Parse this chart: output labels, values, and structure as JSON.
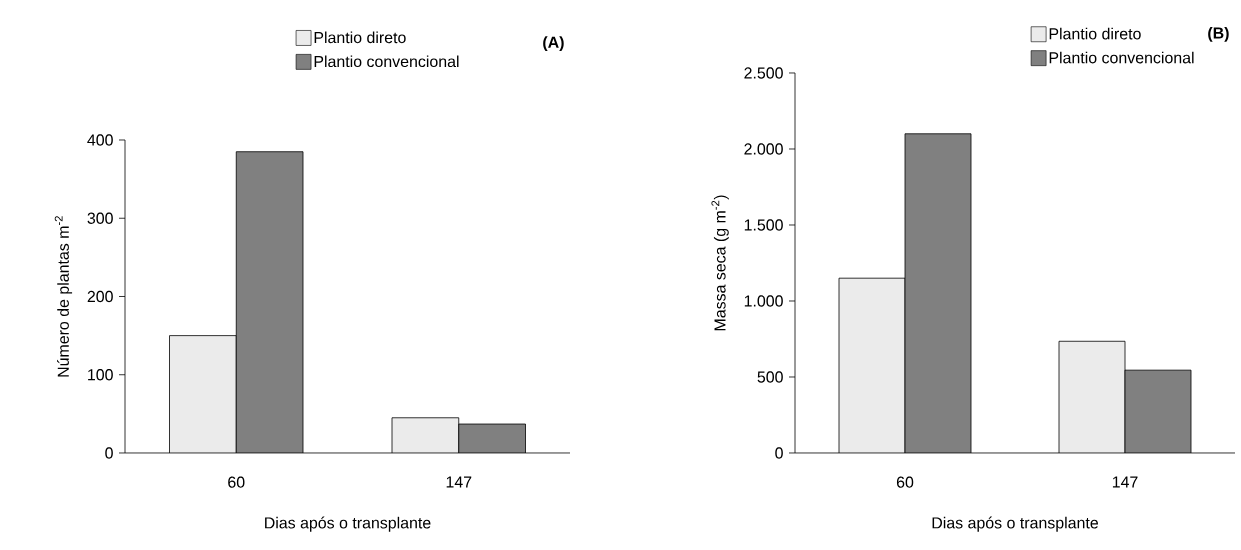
{
  "chart_data": [
    {
      "type": "bar",
      "title": "**(A)**",
      "xlabel": "Dias após o transplante",
      "ylabel": "Número de plantas m$^{-2}$",
      "categories": [
        "60",
        "147"
      ],
      "series": [
        {
          "name": "Plantio direto",
          "color": "#ebebeb",
          "values": [
            150,
            45
          ]
        },
        {
          "name": "Plantio convencional",
          "color": "#808080",
          "values": [
            385,
            37
          ]
        }
      ],
      "ylim": [
        0,
        400
      ],
      "yticks": [
        0,
        100,
        200,
        300,
        400
      ],
      "legend": "top"
    },
    {
      "type": "bar",
      "title": "**(B)**",
      "xlabel": "Dias após o transplante",
      "ylabel": "Massa seca (g m$^{-2}$)",
      "categories": [
        "60",
        "147"
      ],
      "series": [
        {
          "name": "Plantio direto",
          "color": "#ebebeb",
          "values": [
            1150,
            735
          ]
        },
        {
          "name": "Plantio convencional",
          "color": "#808080",
          "values": [
            2100,
            545
          ]
        }
      ],
      "ylim": [
        0,
        2500
      ],
      "yticks": [
        0,
        {
          "value": 500,
          "label": "500"
        },
        {
          "value": 1000,
          "label": "1.000"
        },
        {
          "value": 1500,
          "label": "1.500"
        },
        {
          "value": 2000,
          "label": "2.000"
        },
        {
          "value": 2500,
          "label": "2.500"
        }
      ],
      "legend": "top right"
    }
  ]
}
